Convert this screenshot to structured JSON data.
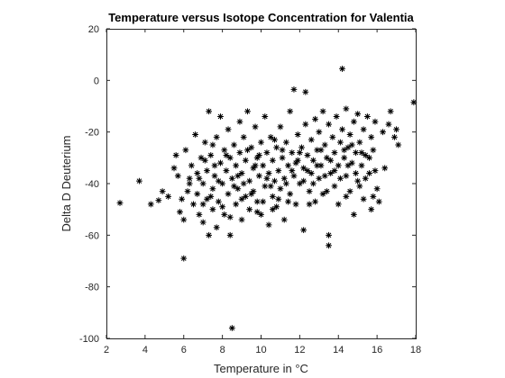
{
  "chart_data": {
    "type": "scatter",
    "title": "Temperature versus Isotope Concentration for Valentia",
    "xlabel": "Temperature in °C",
    "ylabel": "Delta D Deuterium",
    "xlim": [
      2,
      18
    ],
    "ylim": [
      -100,
      20
    ],
    "xticks": [
      2,
      4,
      6,
      8,
      10,
      12,
      14,
      16,
      18
    ],
    "yticks": [
      -100,
      -80,
      -60,
      -40,
      -20,
      0,
      20
    ],
    "grid": false,
    "marker": "asterisk",
    "marker_color": "#000000",
    "series": [
      {
        "points": [
          [
            2.7,
            -47.5
          ],
          [
            3.7,
            -39
          ],
          [
            4.3,
            -48
          ],
          [
            4.7,
            -46.5
          ],
          [
            4.9,
            -43
          ],
          [
            5.2,
            -45
          ],
          [
            5.5,
            -34
          ],
          [
            5.6,
            -29
          ],
          [
            5.7,
            -37
          ],
          [
            5.8,
            -51
          ],
          [
            5.9,
            -46
          ],
          [
            6.0,
            -54
          ],
          [
            6.0,
            -69
          ],
          [
            6.1,
            -27
          ],
          [
            6.2,
            -43
          ],
          [
            6.3,
            -38
          ],
          [
            6.4,
            -33
          ],
          [
            6.5,
            -48
          ],
          [
            6.6,
            -21
          ],
          [
            6.7,
            -36
          ],
          [
            6.7,
            -44
          ],
          [
            6.8,
            -52
          ],
          [
            6.9,
            -30
          ],
          [
            7.0,
            -40
          ],
          [
            7.0,
            -55
          ],
          [
            7.1,
            -24
          ],
          [
            7.2,
            -46
          ],
          [
            7.2,
            -35
          ],
          [
            7.3,
            -12
          ],
          [
            7.3,
            -60
          ],
          [
            7.4,
            -29
          ],
          [
            7.5,
            -50
          ],
          [
            7.5,
            -42
          ],
          [
            7.6,
            -37
          ],
          [
            7.7,
            -57
          ],
          [
            7.7,
            -22
          ],
          [
            7.8,
            -47
          ],
          [
            7.9,
            -32
          ],
          [
            7.9,
            -14
          ],
          [
            8.0,
            -40
          ],
          [
            8.1,
            -27
          ],
          [
            8.1,
            -52
          ],
          [
            8.2,
            -35
          ],
          [
            8.3,
            -44
          ],
          [
            8.3,
            -19
          ],
          [
            8.4,
            -30
          ],
          [
            8.4,
            -60
          ],
          [
            8.5,
            -38
          ],
          [
            8.5,
            -96
          ],
          [
            8.6,
            -25
          ],
          [
            8.7,
            -48
          ],
          [
            8.7,
            -33
          ],
          [
            8.8,
            -42
          ],
          [
            8.9,
            -16
          ],
          [
            8.9,
            -28
          ],
          [
            9.0,
            -36
          ],
          [
            9.0,
            -54
          ],
          [
            9.1,
            -22
          ],
          [
            9.2,
            -45
          ],
          [
            9.2,
            -31
          ],
          [
            9.3,
            -12
          ],
          [
            9.4,
            -39
          ],
          [
            9.4,
            -50
          ],
          [
            9.5,
            -26
          ],
          [
            9.6,
            -34
          ],
          [
            9.6,
            -43
          ],
          [
            9.7,
            -18
          ],
          [
            9.8,
            -30
          ],
          [
            9.8,
            -47
          ],
          [
            9.9,
            -37
          ],
          [
            10.0,
            -24
          ],
          [
            10.0,
            -52
          ],
          [
            10.1,
            -33
          ],
          [
            10.2,
            -41
          ],
          [
            10.2,
            -14
          ],
          [
            10.3,
            -28
          ],
          [
            10.4,
            -36
          ],
          [
            10.4,
            -56
          ],
          [
            10.5,
            -22
          ],
          [
            10.6,
            -45
          ],
          [
            10.6,
            -31
          ],
          [
            10.7,
            -39
          ],
          [
            10.8,
            -26
          ],
          [
            10.8,
            -49
          ],
          [
            10.9,
            -35
          ],
          [
            11.0,
            -18
          ],
          [
            11.0,
            -42
          ],
          [
            11.1,
            -30
          ],
          [
            11.2,
            -38
          ],
          [
            11.2,
            -54
          ],
          [
            11.3,
            -24
          ],
          [
            11.4,
            -33
          ],
          [
            11.5,
            -44
          ],
          [
            11.5,
            -12
          ],
          [
            11.6,
            -28
          ],
          [
            11.7,
            -37
          ],
          [
            11.7,
            -3.5
          ],
          [
            11.8,
            -48
          ],
          [
            11.9,
            -21
          ],
          [
            11.9,
            -31
          ],
          [
            12.0,
            -40
          ],
          [
            12.1,
            -26
          ],
          [
            12.2,
            -34
          ],
          [
            12.2,
            -58
          ],
          [
            12.3,
            -4.5
          ],
          [
            12.3,
            -17
          ],
          [
            12.4,
            -29
          ],
          [
            12.5,
            -43
          ],
          [
            12.6,
            -23
          ],
          [
            12.6,
            -36
          ],
          [
            12.7,
            -31
          ],
          [
            12.8,
            -15
          ],
          [
            12.8,
            -47
          ],
          [
            12.9,
            -27
          ],
          [
            13.0,
            -38
          ],
          [
            13.0,
            -20
          ],
          [
            13.1,
            -33
          ],
          [
            13.2,
            -12
          ],
          [
            13.2,
            -44
          ],
          [
            13.3,
            -25
          ],
          [
            13.4,
            -30
          ],
          [
            13.5,
            -60
          ],
          [
            13.5,
            -64
          ],
          [
            13.5,
            -17
          ],
          [
            13.6,
            -36
          ],
          [
            13.7,
            -22
          ],
          [
            13.8,
            -41
          ],
          [
            13.8,
            -28
          ],
          [
            13.9,
            -14
          ],
          [
            14.0,
            -33
          ],
          [
            14.0,
            -48
          ],
          [
            14.1,
            -24
          ],
          [
            14.2,
            4.5
          ],
          [
            14.2,
            -19
          ],
          [
            14.3,
            -30
          ],
          [
            14.4,
            -37
          ],
          [
            14.4,
            -11
          ],
          [
            14.5,
            -26
          ],
          [
            14.6,
            -43
          ],
          [
            14.6,
            -21
          ],
          [
            14.7,
            -32
          ],
          [
            14.8,
            -16
          ],
          [
            14.8,
            -52
          ],
          [
            14.9,
            -28
          ],
          [
            15.0,
            -39
          ],
          [
            15.0,
            -13
          ],
          [
            15.1,
            -24
          ],
          [
            15.2,
            -33
          ],
          [
            15.3,
            -46
          ],
          [
            15.3,
            -19
          ],
          [
            15.4,
            -29
          ],
          [
            15.5,
            -14
          ],
          [
            15.6,
            -36
          ],
          [
            15.7,
            -50
          ],
          [
            15.7,
            -22
          ],
          [
            15.8,
            -27
          ],
          [
            15.9,
            -16
          ],
          [
            16.0,
            -42
          ],
          [
            16.1,
            -47
          ],
          [
            16.3,
            -20
          ],
          [
            16.4,
            -34
          ],
          [
            16.6,
            -17
          ],
          [
            16.7,
            -12
          ],
          [
            16.9,
            -22
          ],
          [
            17.0,
            -19
          ],
          [
            17.1,
            -25
          ],
          [
            17.9,
            -8.5
          ],
          [
            6.3,
            -40
          ],
          [
            6.8,
            -38
          ],
          [
            7.1,
            -31
          ],
          [
            7.4,
            -45
          ],
          [
            7.6,
            -33
          ],
          [
            7.8,
            -39
          ],
          [
            8.0,
            -49
          ],
          [
            8.2,
            -29
          ],
          [
            8.6,
            -41
          ],
          [
            8.8,
            -37
          ],
          [
            9.1,
            -40
          ],
          [
            9.3,
            -27
          ],
          [
            9.5,
            -44
          ],
          [
            9.7,
            -33
          ],
          [
            9.9,
            -29
          ],
          [
            10.1,
            -47
          ],
          [
            10.3,
            -38
          ],
          [
            10.5,
            -41
          ],
          [
            10.7,
            -23
          ],
          [
            10.9,
            -46
          ],
          [
            11.1,
            -27
          ],
          [
            11.3,
            -40
          ],
          [
            11.6,
            -35
          ],
          [
            11.8,
            -32
          ],
          [
            12.0,
            -28
          ],
          [
            12.2,
            -39
          ],
          [
            12.4,
            -35
          ],
          [
            12.7,
            -40
          ],
          [
            12.9,
            -33
          ],
          [
            13.1,
            -27
          ],
          [
            13.3,
            -37
          ],
          [
            13.6,
            -31
          ],
          [
            13.8,
            -35
          ],
          [
            14.1,
            -38
          ],
          [
            14.3,
            -27
          ],
          [
            14.5,
            -33
          ],
          [
            14.7,
            -25
          ],
          [
            14.9,
            -36
          ],
          [
            15.2,
            -28
          ],
          [
            15.4,
            -38
          ],
          [
            15.6,
            -30
          ],
          [
            15.9,
            -35
          ],
          [
            7.0,
            -48
          ],
          [
            7.5,
            -25
          ],
          [
            8.4,
            -53
          ],
          [
            9.0,
            -46
          ],
          [
            9.8,
            -51
          ],
          [
            10.6,
            -50
          ],
          [
            11.4,
            -47
          ],
          [
            12.5,
            -48
          ],
          [
            13.4,
            -43
          ],
          [
            14.4,
            -45
          ],
          [
            15.1,
            -41
          ],
          [
            15.8,
            -45
          ]
        ]
      }
    ]
  }
}
